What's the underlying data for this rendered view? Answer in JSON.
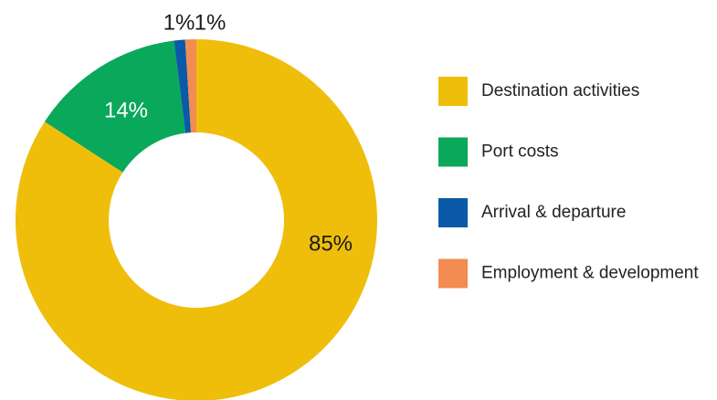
{
  "chart_data": {
    "type": "pie",
    "categories": [
      "Destination activities",
      "Port costs",
      "Arrival & departure",
      "Employment & development"
    ],
    "values": [
      85,
      14,
      1,
      1
    ],
    "value_labels": [
      "85%",
      "14%",
      "1%",
      "1%"
    ],
    "colors": [
      "#efbe0b",
      "#0aa85a",
      "#0a5aa8",
      "#f28c50"
    ],
    "label_colors": [
      "#1a1a1a",
      "#ffffff",
      "#1a1a1a",
      "#1a1a1a"
    ],
    "donut": true,
    "legend": "right"
  }
}
